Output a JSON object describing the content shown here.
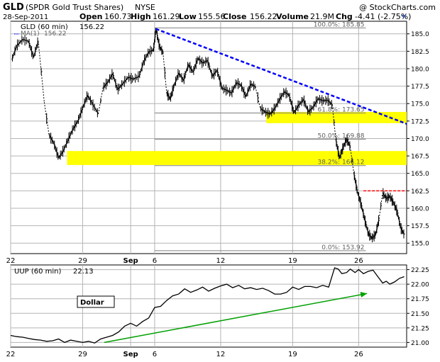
{
  "header": {
    "symbol": "GLD",
    "name": "(SPDR Gold Trust Shares)",
    "exchange": "NYSE",
    "copyright": "@ StockCharts.com",
    "date": "28-Sep-2011",
    "open_label": "Open",
    "open": "160.73",
    "high_label": "High",
    "high": "161.29",
    "low_label": "Low",
    "low": "155.56",
    "close_label": "Close",
    "close": "156.22",
    "volume_label": "Volume",
    "volume": "21.9M",
    "chg_label": "Chg",
    "chg": "-4.41 (-2.75%)"
  },
  "colors": {
    "background": "#ffffff",
    "panel_border": "#000000",
    "grid": "#b4b4b4",
    "price_bars": "#000000",
    "highlight_zone": "#ffff00",
    "trendline": "#0000ff",
    "resistance_line": "#ff0000",
    "dollar_trend_arrow": "#00a000",
    "fib_lines": "#808080"
  },
  "chart_data": [
    {
      "type": "ohlc",
      "panel": "main",
      "legend": {
        "series_label": "GLD (60 min)",
        "series_value": "156.22",
        "ma_label": "MA(1)",
        "ma_value": "156.22"
      },
      "x_tick_labels": [
        "22",
        "29",
        "Sep",
        "6",
        "12",
        "19",
        "26"
      ],
      "x_tick_positions": [
        0,
        6,
        10,
        12,
        17.5,
        23.5,
        29
      ],
      "x_range": [
        0,
        33
      ],
      "y_range": [
        153.5,
        186.8
      ],
      "y_ticks": [
        155.0,
        157.5,
        160.0,
        162.5,
        165.0,
        167.5,
        170.0,
        172.5,
        175.0,
        177.5,
        180.0,
        182.5,
        185.0
      ],
      "y_tick_labels": [
        "155.0",
        "157.5",
        "160.0",
        "162.5",
        "165.0",
        "167.5",
        "170.0",
        "172.5",
        "175.0",
        "177.5",
        "180.0",
        "182.5",
        "185.0"
      ],
      "grid": true,
      "series_path": [
        [
          0.1,
          181.3
        ],
        [
          0.5,
          183.3
        ],
        [
          1.0,
          184.2
        ],
        [
          1.5,
          183.9
        ],
        [
          1.9,
          181.6
        ],
        [
          2.3,
          184.0
        ],
        [
          2.8,
          175.2
        ],
        [
          3.2,
          170.5
        ],
        [
          3.6,
          169.3
        ],
        [
          4.0,
          167.2
        ],
        [
          4.4,
          168.3
        ],
        [
          4.8,
          169.9
        ],
        [
          5.2,
          171.4
        ],
        [
          5.6,
          172.5
        ],
        [
          6.0,
          174.4
        ],
        [
          6.4,
          176.2
        ],
        [
          6.8,
          175.0
        ],
        [
          7.3,
          173.5
        ],
        [
          7.7,
          177.3
        ],
        [
          8.1,
          178.1
        ],
        [
          8.5,
          179.3
        ],
        [
          8.9,
          177.0
        ],
        [
          9.3,
          177.8
        ],
        [
          9.8,
          178.8
        ],
        [
          10.2,
          178.5
        ],
        [
          10.7,
          178.9
        ],
        [
          11.1,
          181.1
        ],
        [
          11.5,
          182.4
        ],
        [
          11.9,
          182.7
        ],
        [
          12.1,
          185.7
        ],
        [
          12.4,
          183.2
        ],
        [
          12.7,
          182.3
        ],
        [
          13.0,
          176.5
        ],
        [
          13.3,
          175.7
        ],
        [
          13.6,
          177.5
        ],
        [
          14.0,
          179.4
        ],
        [
          14.4,
          178.3
        ],
        [
          14.8,
          180.6
        ],
        [
          15.2,
          179.5
        ],
        [
          15.6,
          181.5
        ],
        [
          16.0,
          180.8
        ],
        [
          16.4,
          181.2
        ],
        [
          16.8,
          178.9
        ],
        [
          17.2,
          179.8
        ],
        [
          17.6,
          177.2
        ],
        [
          18.0,
          176.9
        ],
        [
          18.4,
          176.5
        ],
        [
          18.8,
          178.0
        ],
        [
          19.2,
          177.6
        ],
        [
          19.6,
          176.0
        ],
        [
          20.0,
          177.8
        ],
        [
          20.4,
          177.4
        ],
        [
          20.8,
          174.3
        ],
        [
          21.2,
          173.8
        ],
        [
          21.6,
          173.5
        ],
        [
          22.0,
          174.3
        ],
        [
          22.4,
          175.6
        ],
        [
          22.8,
          176.7
        ],
        [
          23.2,
          176.2
        ],
        [
          23.6,
          173.7
        ],
        [
          24.0,
          174.8
        ],
        [
          24.4,
          175.6
        ],
        [
          24.8,
          173.8
        ],
        [
          25.2,
          174.5
        ],
        [
          25.6,
          175.7
        ],
        [
          26.0,
          175.4
        ],
        [
          26.4,
          175.5
        ],
        [
          26.8,
          174.8
        ],
        [
          27.1,
          169.8
        ],
        [
          27.4,
          167.2
        ],
        [
          27.7,
          168.7
        ],
        [
          28.0,
          169.9
        ],
        [
          28.3,
          168.8
        ],
        [
          28.6,
          165.0
        ],
        [
          28.9,
          162.3
        ],
        [
          29.2,
          160.6
        ],
        [
          29.5,
          158.4
        ],
        [
          29.8,
          156.4
        ],
        [
          30.1,
          155.7
        ],
        [
          30.4,
          156.2
        ],
        [
          30.7,
          158.5
        ],
        [
          31.0,
          162.2
        ],
        [
          31.3,
          161.4
        ],
        [
          31.6,
          161.7
        ],
        [
          31.9,
          160.8
        ],
        [
          32.2,
          159.6
        ],
        [
          32.5,
          157.2
        ],
        [
          32.8,
          156.2
        ]
      ],
      "zones": [
        {
          "x_from": 4.7,
          "x_to": 33,
          "y_from": 166.2,
          "y_to": 168.2
        },
        {
          "x_from": 21.3,
          "x_to": 33,
          "y_from": 172.2,
          "y_to": 173.8
        }
      ],
      "retracements": [
        {
          "label": "100.0%: 185.85",
          "value": 185.85
        },
        {
          "label": "61.8%: 173.65",
          "value": 173.65
        },
        {
          "label": "50.0%: 169.88",
          "value": 169.88
        },
        {
          "label": "38.2%: 166.12",
          "value": 166.12
        },
        {
          "label": "0.0%: 153.92",
          "value": 153.92
        }
      ],
      "trendline": {
        "from": [
          12.1,
          185.7
        ],
        "to": [
          33,
          172.1
        ]
      },
      "resistance": {
        "from": [
          29.4,
          162.5
        ],
        "to": [
          33,
          162.5
        ]
      }
    },
    {
      "type": "line",
      "panel": "lower",
      "legend": {
        "series_label": "UUP (60 min)",
        "series_value": "22.13"
      },
      "annotation": "Dollar",
      "x_tick_labels": [
        "22",
        "29",
        "Sep",
        "6",
        "12",
        "19",
        "26"
      ],
      "x_tick_positions": [
        0,
        6,
        10,
        12,
        17.5,
        23.5,
        29
      ],
      "x_range": [
        0,
        33
      ],
      "y_range": [
        20.92,
        22.33
      ],
      "y_ticks": [
        21.0,
        21.25,
        21.5,
        21.75,
        22.0,
        22.25
      ],
      "y_tick_labels": [
        "21.00",
        "21.25",
        "21.50",
        "21.75",
        "22.00",
        "22.25"
      ],
      "grid": true,
      "series": [
        {
          "name": "UUP (60 min)",
          "values": [
            [
              0.0,
              21.12
            ],
            [
              0.5,
              21.1
            ],
            [
              1.0,
              21.09
            ],
            [
              1.5,
              21.07
            ],
            [
              2.0,
              21.05
            ],
            [
              2.5,
              21.04
            ],
            [
              3.0,
              21.02
            ],
            [
              3.5,
              21.03
            ],
            [
              4.0,
              21.06
            ],
            [
              4.5,
              21.0
            ],
            [
              5.0,
              21.04
            ],
            [
              5.5,
              21.02
            ],
            [
              6.0,
              21.0
            ],
            [
              6.5,
              21.02
            ],
            [
              7.0,
              20.99
            ],
            [
              7.5,
              21.06
            ],
            [
              8.0,
              21.09
            ],
            [
              8.5,
              21.12
            ],
            [
              9.0,
              21.18
            ],
            [
              9.5,
              21.28
            ],
            [
              10.0,
              21.33
            ],
            [
              10.5,
              21.28
            ],
            [
              11.0,
              21.36
            ],
            [
              11.5,
              21.42
            ],
            [
              12.0,
              21.6
            ],
            [
              12.5,
              21.62
            ],
            [
              13.0,
              21.72
            ],
            [
              13.5,
              21.8
            ],
            [
              14.0,
              21.83
            ],
            [
              14.5,
              21.92
            ],
            [
              15.0,
              21.86
            ],
            [
              15.5,
              21.9
            ],
            [
              16.0,
              21.95
            ],
            [
              16.5,
              21.88
            ],
            [
              17.0,
              21.93
            ],
            [
              17.5,
              21.97
            ],
            [
              18.0,
              22.0
            ],
            [
              18.5,
              21.94
            ],
            [
              19.0,
              21.98
            ],
            [
              19.5,
              21.92
            ],
            [
              20.0,
              21.94
            ],
            [
              20.5,
              21.91
            ],
            [
              21.0,
              21.93
            ],
            [
              21.5,
              21.89
            ],
            [
              22.0,
              21.83
            ],
            [
              22.5,
              21.83
            ],
            [
              23.0,
              21.86
            ],
            [
              23.5,
              21.95
            ],
            [
              24.0,
              21.91
            ],
            [
              24.5,
              21.96
            ],
            [
              25.0,
              21.96
            ],
            [
              25.5,
              21.94
            ],
            [
              26.0,
              21.98
            ],
            [
              26.5,
              21.95
            ],
            [
              27.0,
              22.28
            ],
            [
              27.3,
              22.26
            ],
            [
              27.6,
              22.18
            ],
            [
              28.0,
              22.2
            ],
            [
              28.3,
              22.26
            ],
            [
              28.7,
              22.2
            ],
            [
              29.0,
              22.25
            ],
            [
              29.4,
              22.18
            ],
            [
              29.8,
              22.22
            ],
            [
              30.2,
              22.24
            ],
            [
              30.6,
              22.13
            ],
            [
              31.0,
              22.02
            ],
            [
              31.3,
              22.05
            ],
            [
              31.6,
              22.0
            ],
            [
              32.0,
              22.04
            ],
            [
              32.4,
              22.1
            ],
            [
              32.8,
              22.13
            ]
          ]
        }
      ],
      "trend_arrow": {
        "from": [
          7.8,
          21.0
        ],
        "to": [
          29.7,
          21.84
        ]
      }
    }
  ]
}
